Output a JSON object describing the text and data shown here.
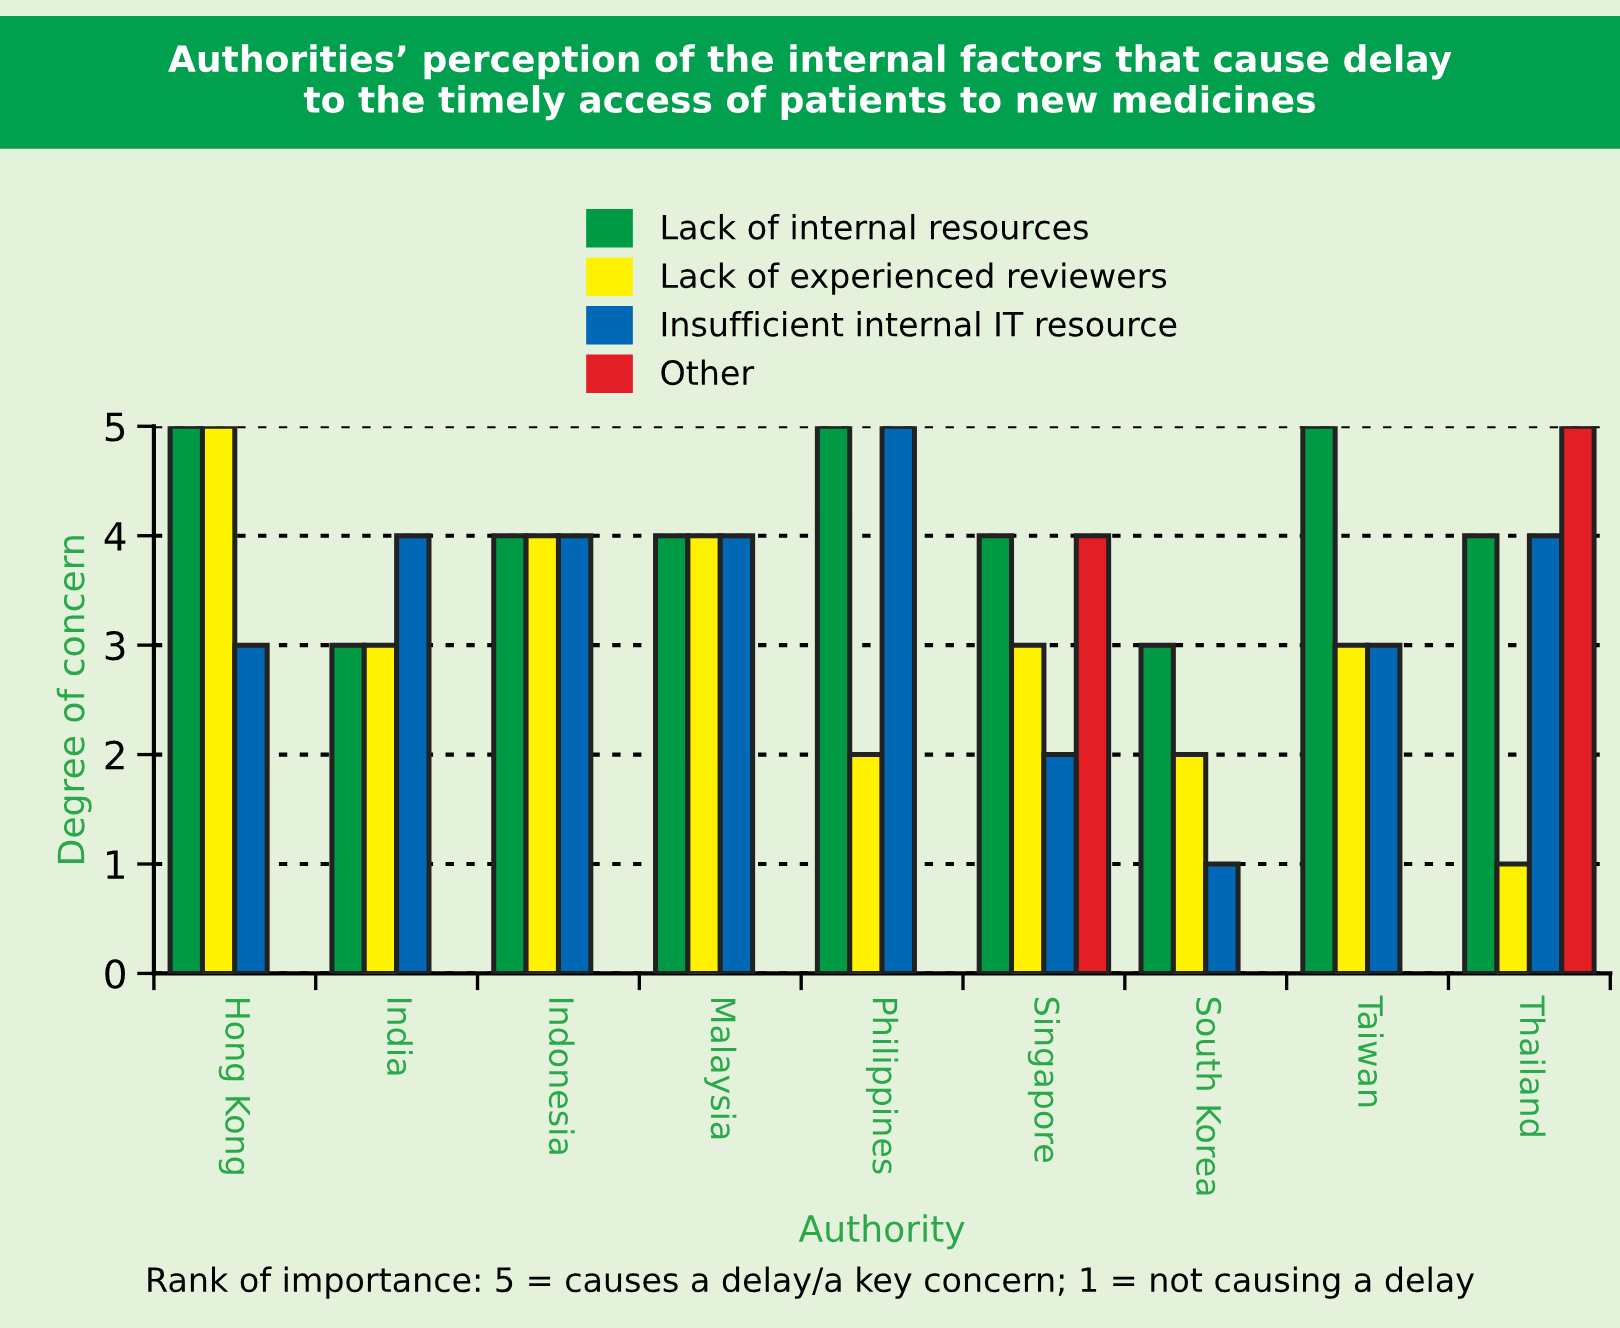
{
  "chart_data": {
    "type": "bar",
    "title": "Authorities’ perception of the internal factors that cause delay\nto the timely access of patients to new medicines",
    "categories": [
      "Hong Kong",
      "India",
      "Indonesia",
      "Malaysia",
      "Philippines",
      "Singapore",
      "South Korea",
      "Taiwan",
      "Thailand"
    ],
    "series": [
      {
        "name": "Lack of internal resources",
        "color": "#009a44",
        "values": [
          5,
          3,
          4,
          4,
          5,
          4,
          3,
          5,
          4
        ]
      },
      {
        "name": "Lack of experienced reviewers",
        "color": "#fff200",
        "values": [
          5,
          3,
          4,
          4,
          2,
          3,
          2,
          3,
          1
        ]
      },
      {
        "name": "Insufficient internal IT resource",
        "color": "#0068b4",
        "values": [
          3,
          4,
          4,
          4,
          5,
          2,
          1,
          3,
          4
        ]
      },
      {
        "name": "Other",
        "color": "#e31e24",
        "values": [
          null,
          null,
          null,
          null,
          null,
          4,
          null,
          null,
          5
        ]
      }
    ],
    "xlabel": "Authority",
    "ylabel": "Degree of concern",
    "ylim": [
      0,
      5
    ],
    "yticks": [
      0,
      1,
      2,
      3,
      4,
      5
    ],
    "grid": "y",
    "legend": "top",
    "annotations": [
      "Rank of importance: 5 = causes a delay/a key concern; 1 = not causing a delay"
    ]
  }
}
